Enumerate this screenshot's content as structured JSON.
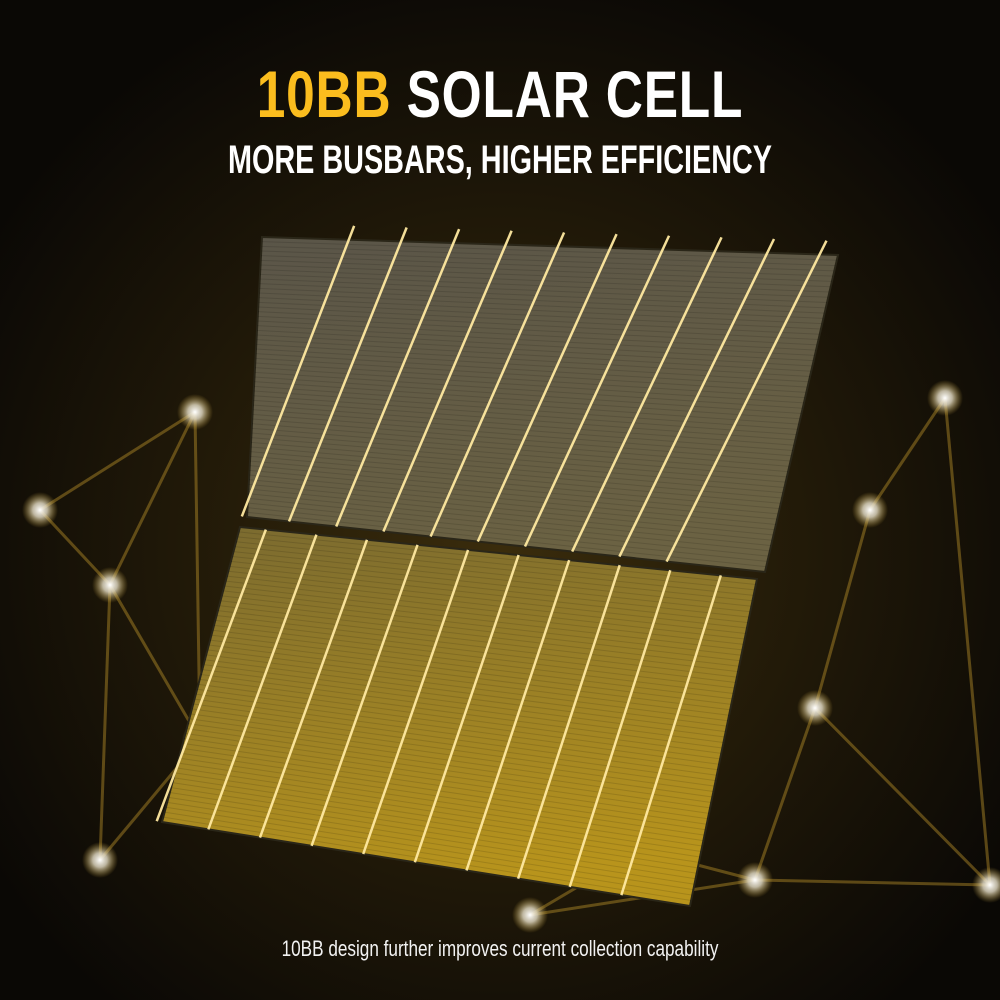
{
  "headline": {
    "highlight": "10BB",
    "rest": "SOLAR CELL"
  },
  "subtitle": "MORE BUSBARS, HIGHER EFFICIENCY",
  "caption": "10BB design further improves current collection capability",
  "colors": {
    "accent": "#fbbd1e",
    "background": "#0d0a05",
    "busbar": "#ffe9a0",
    "network": "#b8902a"
  },
  "solar_cell": {
    "halves": 2,
    "busbars_per_half": 10
  }
}
